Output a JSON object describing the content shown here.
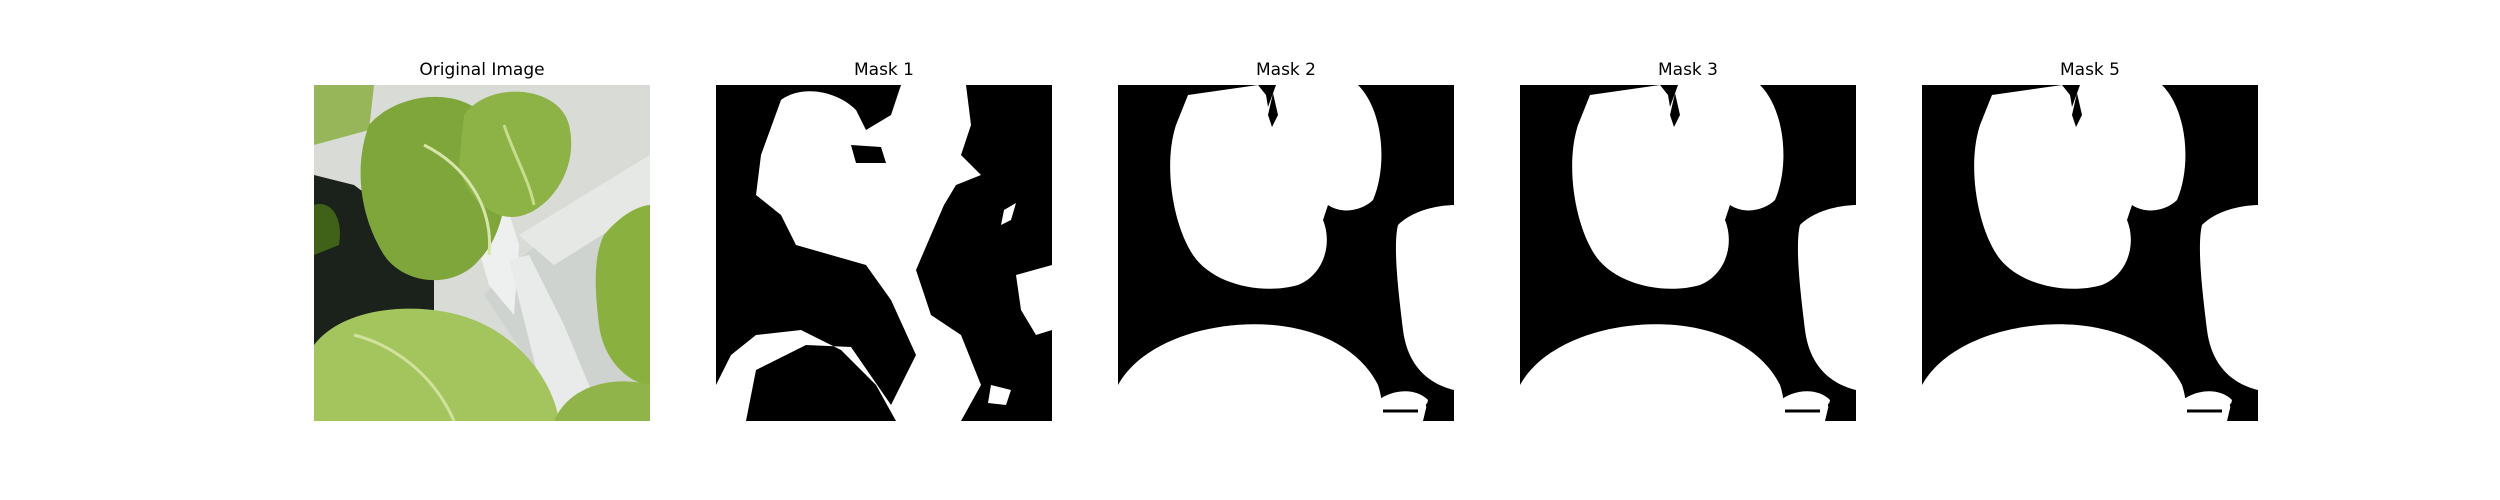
{
  "figure": {
    "panels": [
      {
        "title": "Original Image",
        "kind": "photo"
      },
      {
        "title": "Mask 1",
        "kind": "mask"
      },
      {
        "title": "Mask 2",
        "kind": "mask"
      },
      {
        "title": "Mask 3",
        "kind": "mask"
      },
      {
        "title": "Mask 5",
        "kind": "mask"
      }
    ]
  },
  "colors": {
    "mask_foreground": "#ffffff",
    "mask_background": "#000000",
    "leaf_light": "#b6d27a",
    "leaf_mid": "#7fa63a",
    "leaf_dark": "#3f6218",
    "stem_white": "#e9eaea",
    "shadow_dark": "#1b211b"
  }
}
